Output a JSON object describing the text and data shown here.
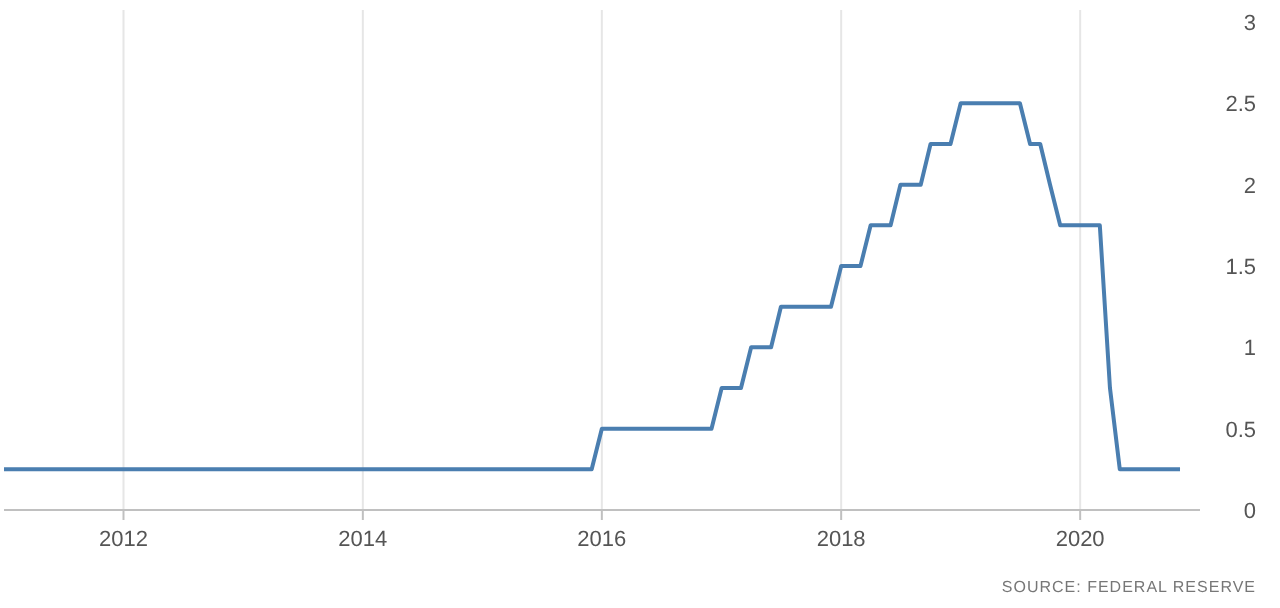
{
  "chart_data": {
    "type": "line",
    "annotations": [
      "SOURCE: FEDERAL RESERVE"
    ],
    "x": [
      "2011-01",
      "2015-12",
      "2016-01",
      "2016-12",
      "2017-01",
      "2017-03",
      "2017-04",
      "2017-06",
      "2017-07",
      "2017-12",
      "2018-01",
      "2018-03",
      "2018-04",
      "2018-06",
      "2018-07",
      "2018-09",
      "2018-10",
      "2018-12",
      "2019-01",
      "2019-07",
      "2019-08",
      "2019-09",
      "2019-10",
      "2019-11",
      "2020-03",
      "2020-04",
      "2020-05",
      "2020-11"
    ],
    "series": [
      {
        "color": "#4a7eb0",
        "values": [
          0.25,
          0.25,
          0.5,
          0.5,
          0.75,
          0.75,
          1,
          1,
          1.25,
          1.25,
          1.5,
          1.5,
          1.75,
          1.75,
          2,
          2,
          2.25,
          2.25,
          2.5,
          2.5,
          2.25,
          2.25,
          2,
          1.75,
          1.75,
          0.75,
          0.25,
          0.25
        ]
      }
    ],
    "xlim": [
      "2011-01",
      "2021-01"
    ],
    "xticks": [
      {
        "value": "2012",
        "label": "2012"
      },
      {
        "value": "2014",
        "label": "2014"
      },
      {
        "value": "2016",
        "label": "2016"
      },
      {
        "value": "2018",
        "label": "2018"
      },
      {
        "value": "2020",
        "label": "2020"
      }
    ],
    "ylim": [
      0,
      3
    ],
    "yticks": [
      0,
      0.5,
      1,
      1.5,
      2,
      2.5,
      3
    ],
    "grid": "x",
    "marker": "none",
    "line_style": "solid"
  }
}
